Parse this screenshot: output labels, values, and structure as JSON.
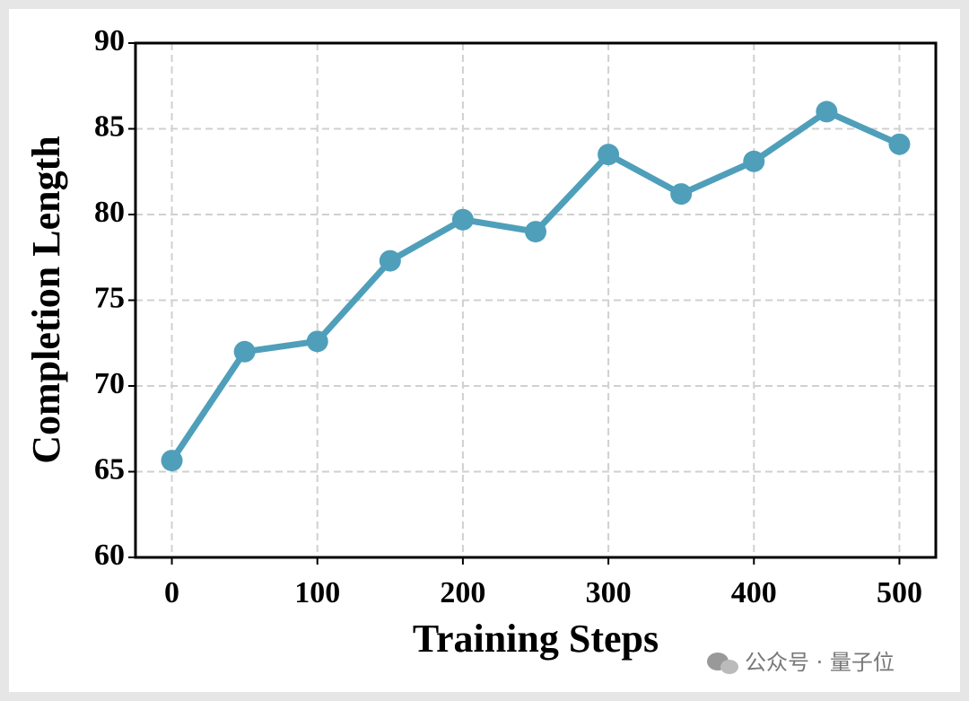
{
  "chart_data": {
    "type": "line",
    "x": [
      0,
      50,
      100,
      150,
      200,
      250,
      300,
      350,
      400,
      450,
      500
    ],
    "series": [
      {
        "name": "Completion Length",
        "color": "#4f9fba",
        "values": [
          65.65,
          72.0,
          72.6,
          77.3,
          79.7,
          79.0,
          83.5,
          81.2,
          83.1,
          86.0,
          84.1
        ]
      }
    ],
    "xlabel": "Training Steps",
    "ylabel": "Completion Length",
    "xlim": [
      -25,
      525
    ],
    "xticks": [
      0,
      100,
      200,
      300,
      400,
      500
    ],
    "ylim": [
      60,
      90
    ],
    "yticks": [
      60,
      65,
      70,
      75,
      80,
      85,
      90
    ],
    "grid": true
  },
  "watermark": "公众号 · 量子位"
}
